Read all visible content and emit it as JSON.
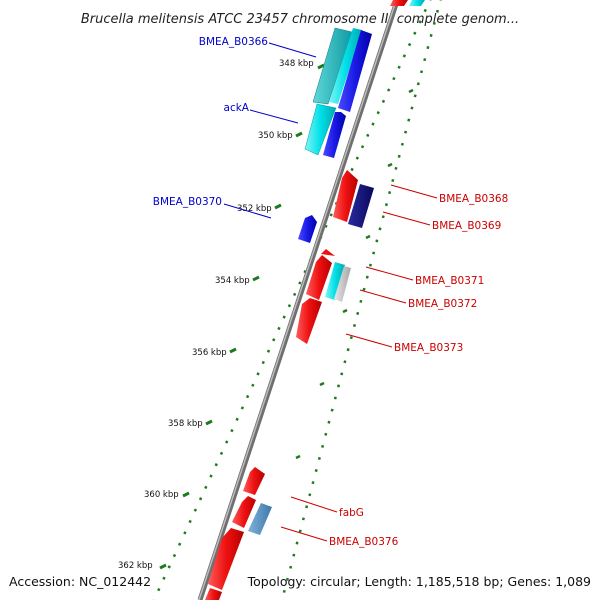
{
  "title": "Brucella melitensis ATCC 23457 chromosome II, complete genom...",
  "accession": "Accession: NC_012442",
  "summary": "Topology: circular; Length: 1,185,518 bp; Genes: 1,089",
  "colors": {
    "backbone": "#8a8a8a",
    "tick": "#1e7a1e",
    "forward_label": "#0000cc",
    "reverse_label": "#cc0000"
  },
  "ticks": [
    {
      "label": "348 kbp"
    },
    {
      "label": "350 kbp"
    },
    {
      "label": "352 kbp"
    },
    {
      "label": "354 kbp"
    },
    {
      "label": "356 kbp"
    },
    {
      "label": "358 kbp"
    },
    {
      "label": "360 kbp"
    },
    {
      "label": "362 kbp"
    }
  ],
  "genes": [
    {
      "name": "BMEA_B0366",
      "strand": "forward"
    },
    {
      "name": "ackA",
      "strand": "forward"
    },
    {
      "name": "BMEA_B0370",
      "strand": "forward"
    },
    {
      "name": "BMEA_B0368",
      "strand": "reverse"
    },
    {
      "name": "BMEA_B0369",
      "strand": "reverse"
    },
    {
      "name": "BMEA_B0371",
      "strand": "reverse"
    },
    {
      "name": "BMEA_B0372",
      "strand": "reverse"
    },
    {
      "name": "BMEA_B0373",
      "strand": "reverse"
    },
    {
      "name": "fabG",
      "strand": "reverse"
    },
    {
      "name": "BMEA_B0376",
      "strand": "reverse"
    }
  ]
}
